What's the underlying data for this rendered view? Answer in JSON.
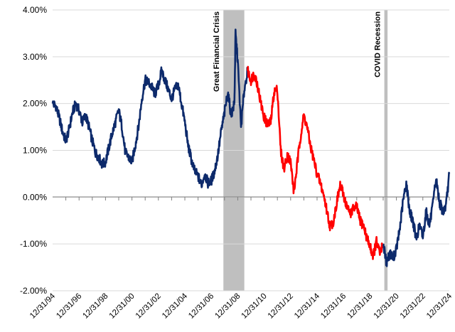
{
  "chart_data": {
    "type": "line",
    "title": "",
    "xlabel": "",
    "ylabel": "",
    "ylim": [
      -2.0,
      4.0
    ],
    "xlim": [
      "1994-12-31",
      "2024-12-31"
    ],
    "y_ticks": [
      {
        "value": 4.0,
        "label": "4.00%"
      },
      {
        "value": 3.0,
        "label": "3.00%"
      },
      {
        "value": 2.0,
        "label": "2.00%"
      },
      {
        "value": 1.0,
        "label": "1.00%"
      },
      {
        "value": 0.0,
        "label": "0.00%"
      },
      {
        "value": -1.0,
        "label": "-1.00%"
      },
      {
        "value": -2.0,
        "label": "-2.00%"
      }
    ],
    "x_ticks": [
      {
        "date": "1994-12-31",
        "label": "12/31/94"
      },
      {
        "date": "1996-12-31",
        "label": "12/31/96"
      },
      {
        "date": "1998-12-31",
        "label": "12/31/98"
      },
      {
        "date": "2000-12-31",
        "label": "12/31/00"
      },
      {
        "date": "2002-12-31",
        "label": "12/31/02"
      },
      {
        "date": "2004-12-31",
        "label": "12/31/04"
      },
      {
        "date": "2006-12-31",
        "label": "12/31/06"
      },
      {
        "date": "2008-12-31",
        "label": "12/31/08"
      },
      {
        "date": "2010-12-31",
        "label": "12/31/10"
      },
      {
        "date": "2012-12-31",
        "label": "12/31/12"
      },
      {
        "date": "2014-12-31",
        "label": "12/31/14"
      },
      {
        "date": "2016-12-31",
        "label": "12/31/16"
      },
      {
        "date": "2018-12-31",
        "label": "12/31/18"
      },
      {
        "date": "2020-12-31",
        "label": "12/31/20"
      },
      {
        "date": "2022-12-31",
        "label": "12/31/22"
      },
      {
        "date": "2024-12-31",
        "label": "12/31/24"
      }
    ],
    "grid": "horizontal",
    "legend": "none",
    "shaded_periods": [
      {
        "label": "Great Financial Crisis",
        "start": "2007-12-01",
        "end": "2009-06-30",
        "color": "#bfbfbf"
      },
      {
        "label": "COVID Recession",
        "start": "2020-02-01",
        "end": "2020-04-30",
        "color": "#bfbfbf"
      }
    ],
    "series": [
      {
        "color": "#0d2a6b",
        "points": [
          [
            "1994-12-31",
            2.0
          ],
          [
            "1995-03-31",
            1.95
          ],
          [
            "1995-06-30",
            1.7
          ],
          [
            "1995-09-30",
            1.4
          ],
          [
            "1995-12-31",
            1.2
          ],
          [
            "1996-03-31",
            1.45
          ],
          [
            "1996-06-30",
            1.8
          ],
          [
            "1996-09-30",
            2.0
          ],
          [
            "1996-12-31",
            1.85
          ],
          [
            "1997-03-31",
            1.6
          ],
          [
            "1997-06-30",
            1.75
          ],
          [
            "1997-09-30",
            1.5
          ],
          [
            "1997-12-31",
            1.2
          ],
          [
            "1998-03-31",
            0.95
          ],
          [
            "1998-06-30",
            0.85
          ],
          [
            "1998-09-30",
            0.7
          ],
          [
            "1998-12-31",
            0.75
          ],
          [
            "1999-03-31",
            1.05
          ],
          [
            "1999-06-30",
            1.35
          ],
          [
            "1999-09-30",
            1.6
          ],
          [
            "1999-12-31",
            1.85
          ],
          [
            "2000-03-31",
            1.5
          ],
          [
            "2000-06-30",
            0.95
          ],
          [
            "2000-09-30",
            0.85
          ],
          [
            "2000-12-31",
            0.75
          ],
          [
            "2001-03-31",
            1.1
          ],
          [
            "2001-06-30",
            1.5
          ],
          [
            "2001-09-30",
            2.1
          ],
          [
            "2001-12-31",
            2.5
          ],
          [
            "2002-03-31",
            2.45
          ],
          [
            "2002-06-30",
            2.35
          ],
          [
            "2002-09-30",
            2.2
          ],
          [
            "2002-12-31",
            2.4
          ],
          [
            "2003-03-31",
            2.7
          ],
          [
            "2003-06-30",
            2.5
          ],
          [
            "2003-09-30",
            2.3
          ],
          [
            "2003-12-31",
            2.1
          ],
          [
            "2004-03-31",
            2.3
          ],
          [
            "2004-06-30",
            2.4
          ],
          [
            "2004-09-30",
            2.0
          ],
          [
            "2004-12-31",
            1.6
          ],
          [
            "2005-03-31",
            1.1
          ],
          [
            "2005-06-30",
            0.8
          ],
          [
            "2005-09-30",
            0.55
          ],
          [
            "2005-12-31",
            0.45
          ],
          [
            "2006-03-31",
            0.25
          ],
          [
            "2006-06-30",
            0.5
          ],
          [
            "2006-09-30",
            0.3
          ],
          [
            "2006-12-31",
            0.35
          ],
          [
            "2007-03-31",
            0.55
          ],
          [
            "2007-06-30",
            0.9
          ],
          [
            "2007-09-30",
            1.4
          ],
          [
            "2007-12-31",
            1.8
          ],
          [
            "2008-03-31",
            2.25
          ],
          [
            "2008-06-30",
            1.75
          ],
          [
            "2008-09-30",
            2.0
          ],
          [
            "2008-10-31",
            3.5
          ],
          [
            "2008-12-31",
            2.9
          ],
          [
            "2009-03-31",
            1.5
          ],
          [
            "2009-06-30",
            2.3
          ],
          [
            "2009-09-30",
            2.7
          ]
        ]
      },
      {
        "color": "#ff0000",
        "points": [
          [
            "2009-09-30",
            2.7
          ],
          [
            "2009-12-31",
            2.5
          ],
          [
            "2010-03-31",
            2.65
          ],
          [
            "2010-06-30",
            2.4
          ],
          [
            "2010-09-30",
            2.0
          ],
          [
            "2010-12-31",
            1.7
          ],
          [
            "2011-03-31",
            1.55
          ],
          [
            "2011-06-30",
            1.6
          ],
          [
            "2011-09-30",
            2.25
          ],
          [
            "2011-12-31",
            2.3
          ],
          [
            "2012-03-31",
            1.0
          ],
          [
            "2012-06-30",
            0.6
          ],
          [
            "2012-09-30",
            0.9
          ],
          [
            "2012-12-31",
            0.75
          ],
          [
            "2013-03-31",
            0.1
          ],
          [
            "2013-06-30",
            0.7
          ],
          [
            "2013-09-30",
            1.3
          ],
          [
            "2013-12-31",
            1.75
          ],
          [
            "2014-03-31",
            1.5
          ],
          [
            "2014-06-30",
            1.1
          ],
          [
            "2014-09-30",
            0.8
          ],
          [
            "2014-12-31",
            0.5
          ],
          [
            "2015-03-31",
            0.3
          ],
          [
            "2015-06-30",
            0.05
          ],
          [
            "2015-09-30",
            -0.3
          ],
          [
            "2015-12-31",
            -0.65
          ],
          [
            "2016-03-31",
            -0.5
          ],
          [
            "2016-06-30",
            -0.1
          ],
          [
            "2016-09-30",
            0.25
          ],
          [
            "2016-12-31",
            0.05
          ],
          [
            "2017-03-31",
            -0.2
          ],
          [
            "2017-06-30",
            -0.35
          ],
          [
            "2017-09-30",
            -0.25
          ],
          [
            "2017-12-31",
            -0.2
          ],
          [
            "2018-03-31",
            -0.5
          ],
          [
            "2018-06-30",
            -0.6
          ],
          [
            "2018-09-30",
            -0.85
          ],
          [
            "2018-12-31",
            -1.05
          ],
          [
            "2019-03-31",
            -1.25
          ],
          [
            "2019-06-30",
            -0.95
          ],
          [
            "2019-09-30",
            -1.2
          ],
          [
            "2019-12-31",
            -1.0
          ]
        ]
      },
      {
        "color": "#0d2a6b",
        "points": [
          [
            "2019-12-31",
            -1.0
          ],
          [
            "2020-03-31",
            -1.4
          ],
          [
            "2020-06-30",
            -1.2
          ],
          [
            "2020-09-30",
            -1.3
          ],
          [
            "2020-12-31",
            -1.1
          ],
          [
            "2021-03-31",
            -0.7
          ],
          [
            "2021-06-30",
            -0.1
          ],
          [
            "2021-09-30",
            0.3
          ],
          [
            "2021-12-31",
            -0.3
          ],
          [
            "2022-03-31",
            -0.5
          ],
          [
            "2022-06-30",
            -0.9
          ],
          [
            "2022-09-30",
            -0.6
          ],
          [
            "2022-12-31",
            -0.85
          ],
          [
            "2023-03-31",
            -0.3
          ],
          [
            "2023-06-30",
            -0.6
          ],
          [
            "2023-09-30",
            -0.2
          ],
          [
            "2023-12-31",
            0.4
          ],
          [
            "2024-03-31",
            -0.1
          ],
          [
            "2024-06-30",
            -0.3
          ],
          [
            "2024-09-30",
            -0.2
          ],
          [
            "2024-12-31",
            0.5
          ]
        ]
      }
    ]
  }
}
